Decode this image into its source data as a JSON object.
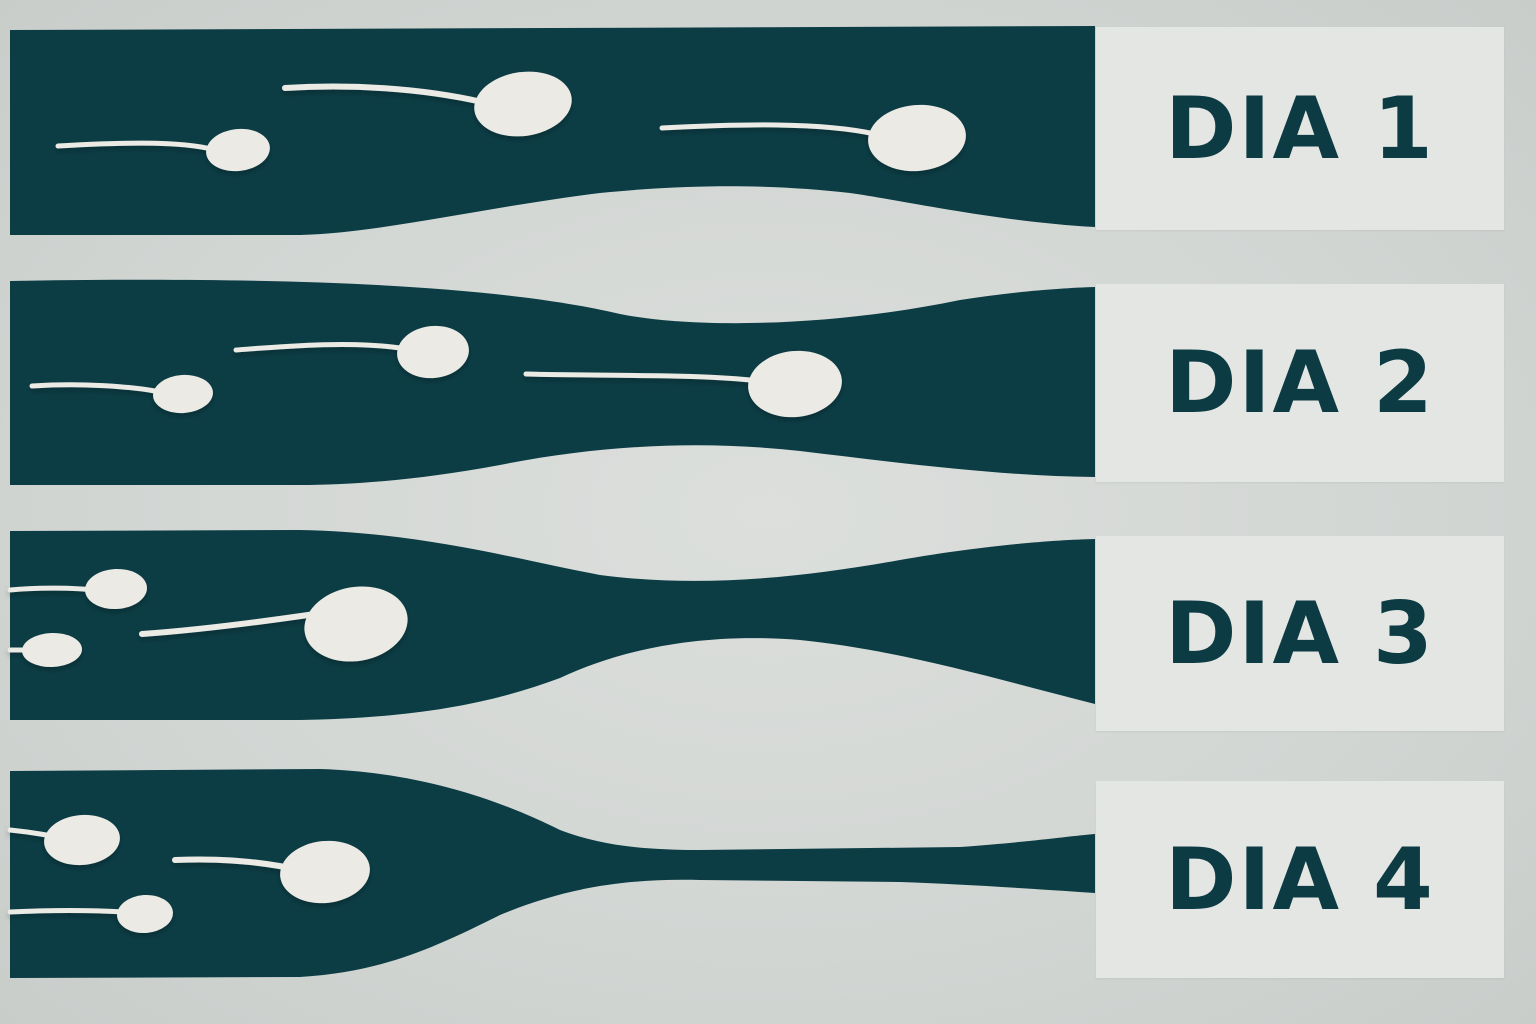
{
  "colors": {
    "channel": "#0c3d45",
    "label_text": "#0c3b44",
    "label_box": "#e4e6e3",
    "sperm": "#ebeae5",
    "background": "#d4d8d5"
  },
  "icons": [
    "sperm-cell-icon"
  ],
  "rows": [
    {
      "label": "DIA 1",
      "sperm_count": 3
    },
    {
      "label": "DIA 2",
      "sperm_count": 3
    },
    {
      "label": "DIA 3",
      "sperm_count": 3
    },
    {
      "label": "DIA 4",
      "sperm_count": 3
    }
  ]
}
